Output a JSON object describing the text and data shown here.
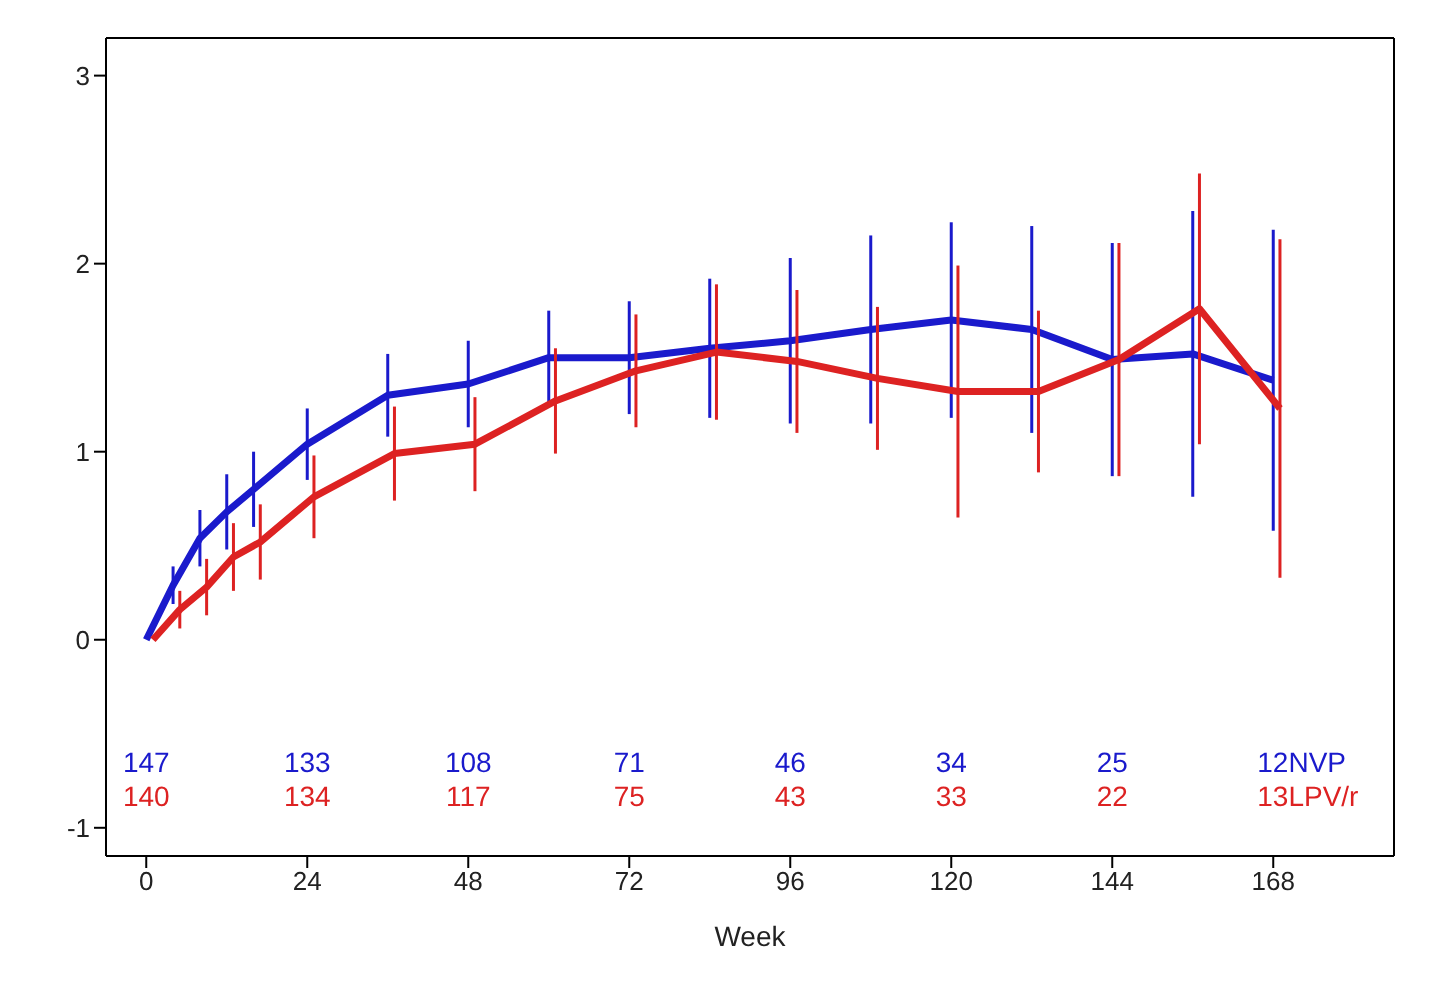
{
  "chart_data": {
    "type": "line",
    "xlabel": "Week",
    "xlim": [
      -6,
      186
    ],
    "xticks": [
      0,
      24,
      48,
      72,
      96,
      120,
      144,
      168
    ],
    "ylim": [
      -1.15,
      3.2
    ],
    "yticks": [
      -1,
      0,
      1,
      2,
      3
    ],
    "grid": false,
    "legend": false,
    "marker": "none",
    "line_style": "solid",
    "series": [
      {
        "name": "NVP",
        "color": "#1a1acc",
        "x": [
          0,
          4,
          8,
          12,
          16,
          24,
          36,
          48,
          60,
          72,
          84,
          96,
          108,
          120,
          132,
          144,
          156,
          168
        ],
        "values": [
          0,
          0.29,
          0.54,
          0.68,
          0.8,
          1.04,
          1.3,
          1.36,
          1.5,
          1.5,
          1.55,
          1.59,
          1.65,
          1.7,
          1.65,
          1.49,
          1.52,
          1.38
        ],
        "errors": [
          null,
          0.1,
          0.15,
          0.2,
          0.2,
          0.19,
          0.22,
          0.23,
          0.25,
          0.3,
          0.37,
          0.44,
          0.5,
          0.52,
          0.55,
          0.62,
          0.76,
          0.8
        ]
      },
      {
        "name": "LPV/r",
        "color": "#dd2222",
        "x": [
          1,
          5,
          9,
          13,
          17,
          25,
          37,
          49,
          61,
          73,
          85,
          97,
          109,
          121,
          133,
          145,
          157,
          169
        ],
        "values": [
          0,
          0.16,
          0.28,
          0.44,
          0.52,
          0.76,
          0.99,
          1.04,
          1.27,
          1.43,
          1.53,
          1.48,
          1.39,
          1.32,
          1.32,
          1.49,
          1.76,
          1.23
        ],
        "errors": [
          null,
          0.1,
          0.15,
          0.18,
          0.2,
          0.22,
          0.25,
          0.25,
          0.28,
          0.3,
          0.36,
          0.38,
          0.38,
          0.67,
          0.43,
          0.62,
          0.72,
          0.9
        ]
      }
    ],
    "annotations": [
      "147",
      "133",
      "108",
      "71",
      "46",
      "34",
      "25",
      "12",
      "140",
      "134",
      "117",
      "75",
      "43",
      "33",
      "22",
      "13"
    ]
  }
}
